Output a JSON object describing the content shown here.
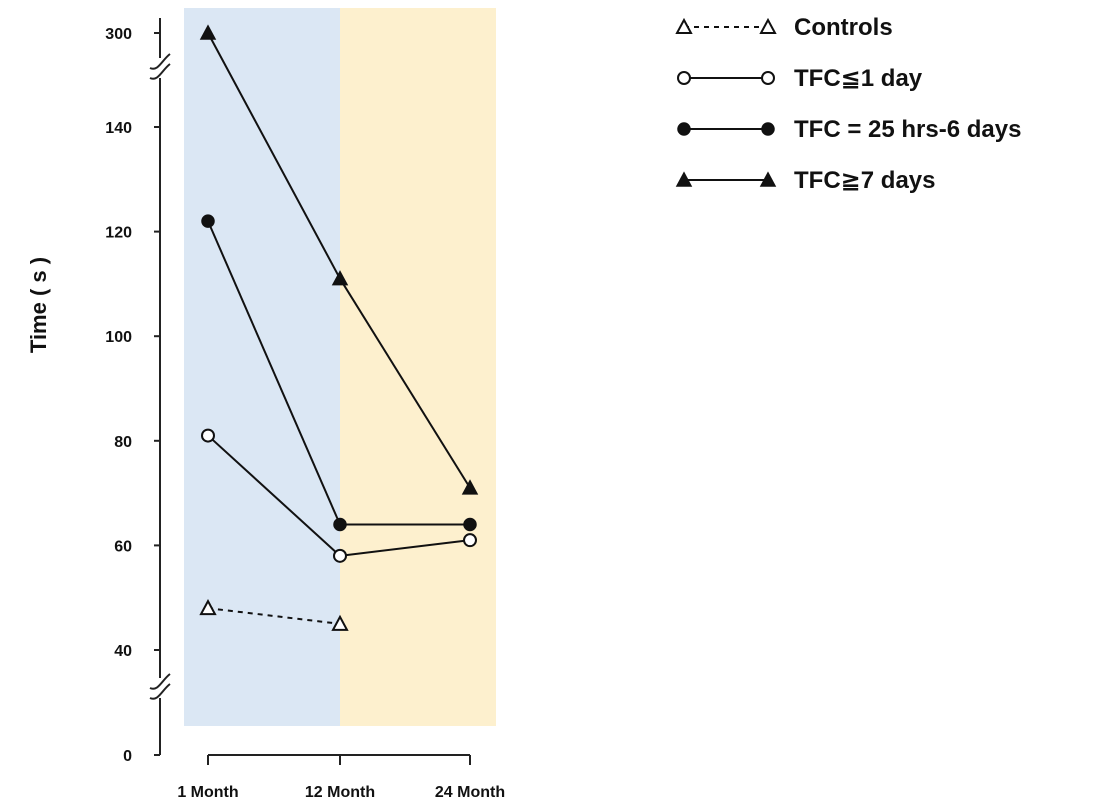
{
  "chart_data": {
    "type": "line",
    "title": "",
    "xlabel": "",
    "ylabel": "Time ( s )",
    "categories": [
      "1 Month",
      "12 Month",
      "24 Month"
    ],
    "y_ticks": [
      "0",
      "40",
      "60",
      "80",
      "100",
      "120",
      "140",
      "300"
    ],
    "y_axis_breaks": [
      {
        "between": [
          0,
          40
        ]
      },
      {
        "between": [
          140,
          300
        ]
      }
    ],
    "grid": false,
    "legend_position": "top-right",
    "shaded_regions": [
      {
        "from": "1 Month",
        "to": "12 Month",
        "color": "#dbe7f4"
      },
      {
        "from": "12 Month",
        "to": "24 Month",
        "color": "#fdf0ce"
      }
    ],
    "series": [
      {
        "name": "Controls",
        "marker": "triangle-open",
        "line": "dashed",
        "values": [
          48,
          45,
          null
        ]
      },
      {
        "name": "TFC≦1 day",
        "marker": "circle-open",
        "line": "solid",
        "values": [
          81,
          58,
          61
        ]
      },
      {
        "name": "TFC = 25 hrs-6 days",
        "marker": "circle-filled",
        "line": "solid",
        "values": [
          122,
          64,
          64
        ]
      },
      {
        "name": "TFC≧7 days",
        "marker": "triangle-filled",
        "line": "solid",
        "values": [
          300,
          111,
          71
        ]
      }
    ]
  }
}
